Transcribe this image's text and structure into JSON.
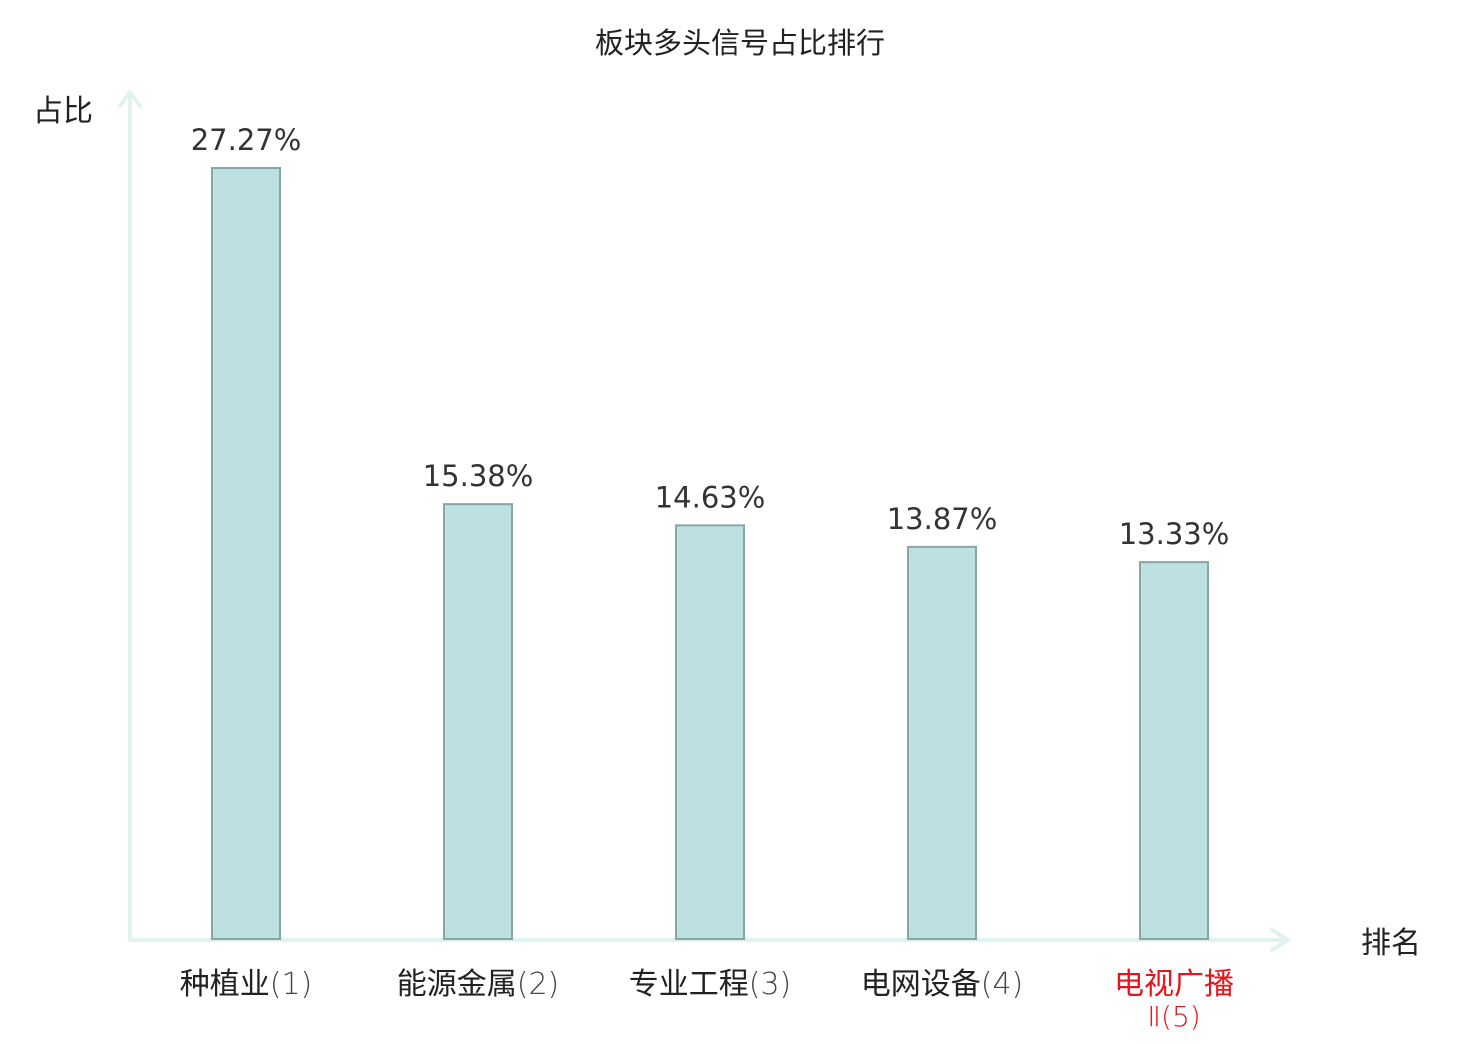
{
  "chart_data": {
    "type": "bar",
    "title": "板块多头信号占比排行",
    "ylabel": "占比",
    "xlabel": "排名",
    "categories": [
      [
        "种植业",
        "(1)"
      ],
      [
        "能源金属",
        "(2)"
      ],
      [
        "专业工程",
        "(3)"
      ],
      [
        "电网设备",
        "(4)"
      ],
      [
        "电视广播",
        "Ⅱ(5)"
      ]
    ],
    "values": [
      27.27,
      15.38,
      14.63,
      13.87,
      13.33
    ],
    "value_labels": [
      "27.27%",
      "15.38%",
      "14.63%",
      "13.87%",
      "13.33%"
    ],
    "highlight_index": 4,
    "ylim": [
      0,
      30
    ],
    "grid": false,
    "colors": {
      "bar_fill": "#bde0e1",
      "bar_stroke": "#8aa5a6",
      "axis": "#e1f3f1",
      "text": "#333333",
      "label": "#222222",
      "highlight": "#e8141b"
    }
  }
}
